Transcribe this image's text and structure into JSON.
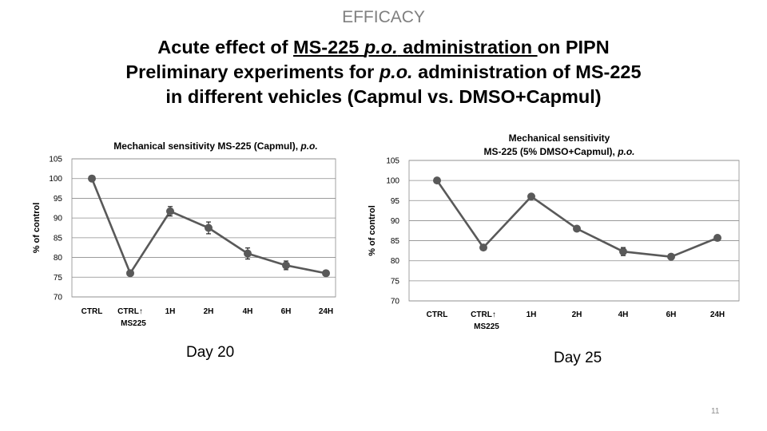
{
  "slide": {
    "section": "EFFICACY",
    "title_line1": {
      "pre": "Acute effect of ",
      "u1": "MS-225 ",
      "u2": "p.o.",
      "u3": " administration ",
      "post": "on PIPN"
    },
    "title_line2": {
      "pre": "Preliminary experiments for ",
      "it": "p.o.",
      "post": " administration of MS-225"
    },
    "title_line3": "in different vehicles (Capmul vs. DMSO+Capmul)",
    "page_number": "11",
    "colors": {
      "series": "#595959",
      "grid": "#8c8c8c",
      "section": "#7f7f7f"
    }
  },
  "chart_data": [
    {
      "type": "line",
      "title_lines": [
        {
          "text": "Mechanical sensitivity MS-225 (Capmul), ",
          "italic": "p.o."
        }
      ],
      "ylabel": "% of control",
      "ylim": [
        70,
        105
      ],
      "yticks": [
        70,
        75,
        80,
        85,
        90,
        95,
        100,
        105
      ],
      "categories": [
        [
          "CTRL"
        ],
        [
          "CTRL↑",
          "MS225"
        ],
        [
          "1H"
        ],
        [
          "2H"
        ],
        [
          "4H"
        ],
        [
          "6H"
        ],
        [
          "24H"
        ]
      ],
      "values": [
        100,
        76,
        91.7,
        87.5,
        81,
        78,
        76
      ],
      "errors": [
        0,
        0,
        1.2,
        1.5,
        1.4,
        1.1,
        0
      ],
      "grid": true,
      "footer": "Day 20"
    },
    {
      "type": "line",
      "title_lines": [
        {
          "text": "Mechanical sensitivity",
          "italic": ""
        },
        {
          "text": "MS-225 (5% DMSO+Capmul), ",
          "italic": "p.o."
        }
      ],
      "ylabel": "% of control",
      "ylim": [
        70,
        105
      ],
      "yticks": [
        70,
        75,
        80,
        85,
        90,
        95,
        100,
        105
      ],
      "categories": [
        [
          "CTRL"
        ],
        [
          "CTRL↑",
          "MS225"
        ],
        [
          "1H"
        ],
        [
          "2H"
        ],
        [
          "4H"
        ],
        [
          "6H"
        ],
        [
          "24H"
        ]
      ],
      "values": [
        100,
        83.3,
        96,
        88,
        82.3,
        81,
        85.7
      ],
      "errors": [
        0,
        0,
        0,
        0,
        1.0,
        0.6,
        0
      ],
      "grid": true,
      "footer": "Day 25"
    }
  ]
}
